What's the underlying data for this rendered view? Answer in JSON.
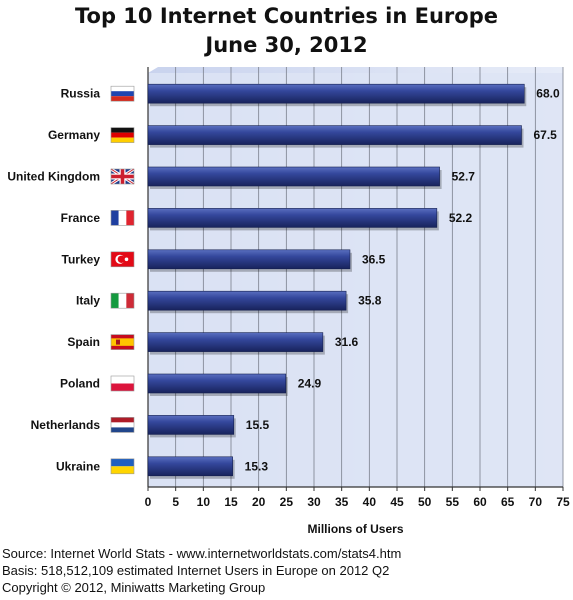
{
  "chart_data": {
    "type": "bar",
    "orientation": "horizontal",
    "title": "Top 10 Internet Countries in Europe",
    "subtitle": "June 30, 2012",
    "categories": [
      "Russia",
      "Germany",
      "United Kingdom",
      "France",
      "Turkey",
      "Italy",
      "Spain",
      "Poland",
      "Netherlands",
      "Ukraine"
    ],
    "values": [
      68.0,
      67.5,
      52.7,
      52.2,
      36.5,
      35.8,
      31.6,
      24.9,
      15.5,
      15.3
    ],
    "value_labels": [
      "68.0",
      "67.5",
      "52.7",
      "52.2",
      "36.5",
      "35.8",
      "31.6",
      "24.9",
      "15.5",
      "15.3"
    ],
    "xlabel": "Millions of Users",
    "xlim": [
      0,
      75
    ],
    "xticks": [
      "0",
      "5",
      "10",
      "15",
      "20",
      "25",
      "30",
      "35",
      "40",
      "45",
      "50",
      "55",
      "60",
      "65",
      "70",
      "75"
    ],
    "grid": true,
    "bar_color": "#2e3f8f",
    "plot_background": "#dde4f4"
  },
  "footer": {
    "source": "Source: Internet World Stats  -  www.internetworldstats.com/stats4.htm",
    "basis": "Basis: 518,512,109 estimated Internet  Users in Europe on 2012 Q2",
    "copyright": "Copyright © 2012, Miniwatts Marketing Group"
  }
}
